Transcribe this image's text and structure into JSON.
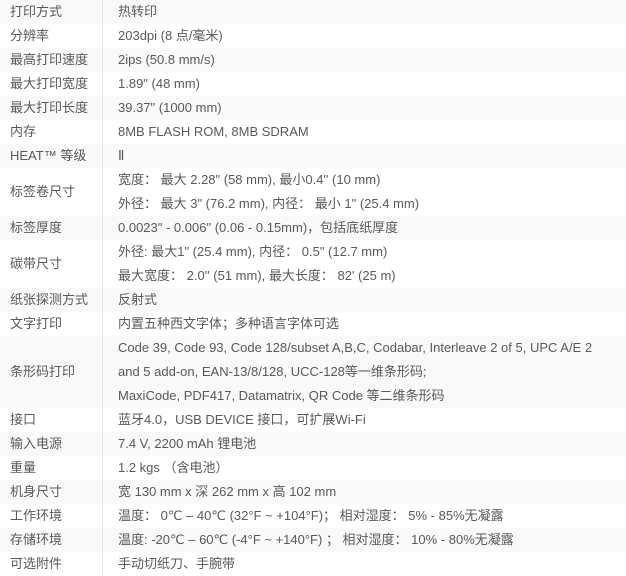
{
  "colors": {
    "odd_row_bg": "#f9f9f9",
    "even_row_bg": "#ffffff",
    "divider": "#e6e6e6",
    "text": "#595959"
  },
  "table": {
    "rows": [
      {
        "label": "打印方式",
        "lines": [
          "热转印"
        ]
      },
      {
        "label": "分辨率",
        "lines": [
          "203dpi (8 点/毫米)"
        ]
      },
      {
        "label": "最高打印速度",
        "lines": [
          "2ips (50.8 mm/s)"
        ]
      },
      {
        "label": "最大打印宽度",
        "lines": [
          "1.89\" (48 mm)"
        ]
      },
      {
        "label": "最大打印长度",
        "lines": [
          "39.37\" (1000 mm)"
        ]
      },
      {
        "label": "内存",
        "lines": [
          "8MB FLASH ROM, 8MB SDRAM"
        ]
      },
      {
        "label": "HEAT™ 等级",
        "lines": [
          "Ⅱ"
        ]
      },
      {
        "label": "标签卷尺寸",
        "lines": [
          "宽度： 最大 2.28\" (58 mm), 最小0.4'' (10 mm)",
          "外径： 最大 3\" (76.2 mm), 内径： 最小 1\" (25.4 mm)"
        ]
      },
      {
        "label": "标签厚度",
        "lines": [
          "0.0023\" - 0.006\" (0.06 - 0.15mm)，包括底纸厚度"
        ]
      },
      {
        "label": "碳带尺寸",
        "lines": [
          "外径: 最大1\" (25.4 mm), 内径： 0.5\" (12.7 mm)",
          "最大宽度： 2.0'' (51 mm), 最大长度： 82' (25 m)"
        ]
      },
      {
        "label": "纸张探测方式",
        "lines": [
          "反射式"
        ]
      },
      {
        "label": "文字打印",
        "lines": [
          "内置五种西文字体；多种语言字体可选"
        ]
      },
      {
        "label": "条形码打印",
        "lines": [
          "Code 39, Code 93, Code 128/subset A,B,C, Codabar, Interleave 2 of 5, UPC A/E 2",
          "and 5 add-on, EAN-13/8/128, UCC-128等一维条形码;",
          "MaxiCode, PDF417, Datamatrix, QR Code 等二维条形码"
        ]
      },
      {
        "label": "接口",
        "lines": [
          "蓝牙4.0，USB DEVICE 接口，可扩展Wi-Fi"
        ]
      },
      {
        "label": "输入电源",
        "lines": [
          "7.4 V, 2200 mAh 锂电池"
        ]
      },
      {
        "label": "重量",
        "lines": [
          "1.2 kgs （含电池）"
        ]
      },
      {
        "label": "机身尺寸",
        "lines": [
          "宽 130 mm x 深 262 mm x 高 102 mm"
        ]
      },
      {
        "label": "工作环境",
        "lines": [
          "温度： 0℃ – 40℃ (32°F ~ +104°F)； 相对湿度： 5% - 85%无凝露"
        ]
      },
      {
        "label": "存储环境",
        "lines": [
          "温度: -20℃ – 60℃ (-4°F ~ +140°F) ； 相对湿度： 10% - 80%无凝露"
        ]
      },
      {
        "label": "可选附件",
        "lines": [
          "手动切纸刀、手腕带"
        ]
      }
    ]
  }
}
